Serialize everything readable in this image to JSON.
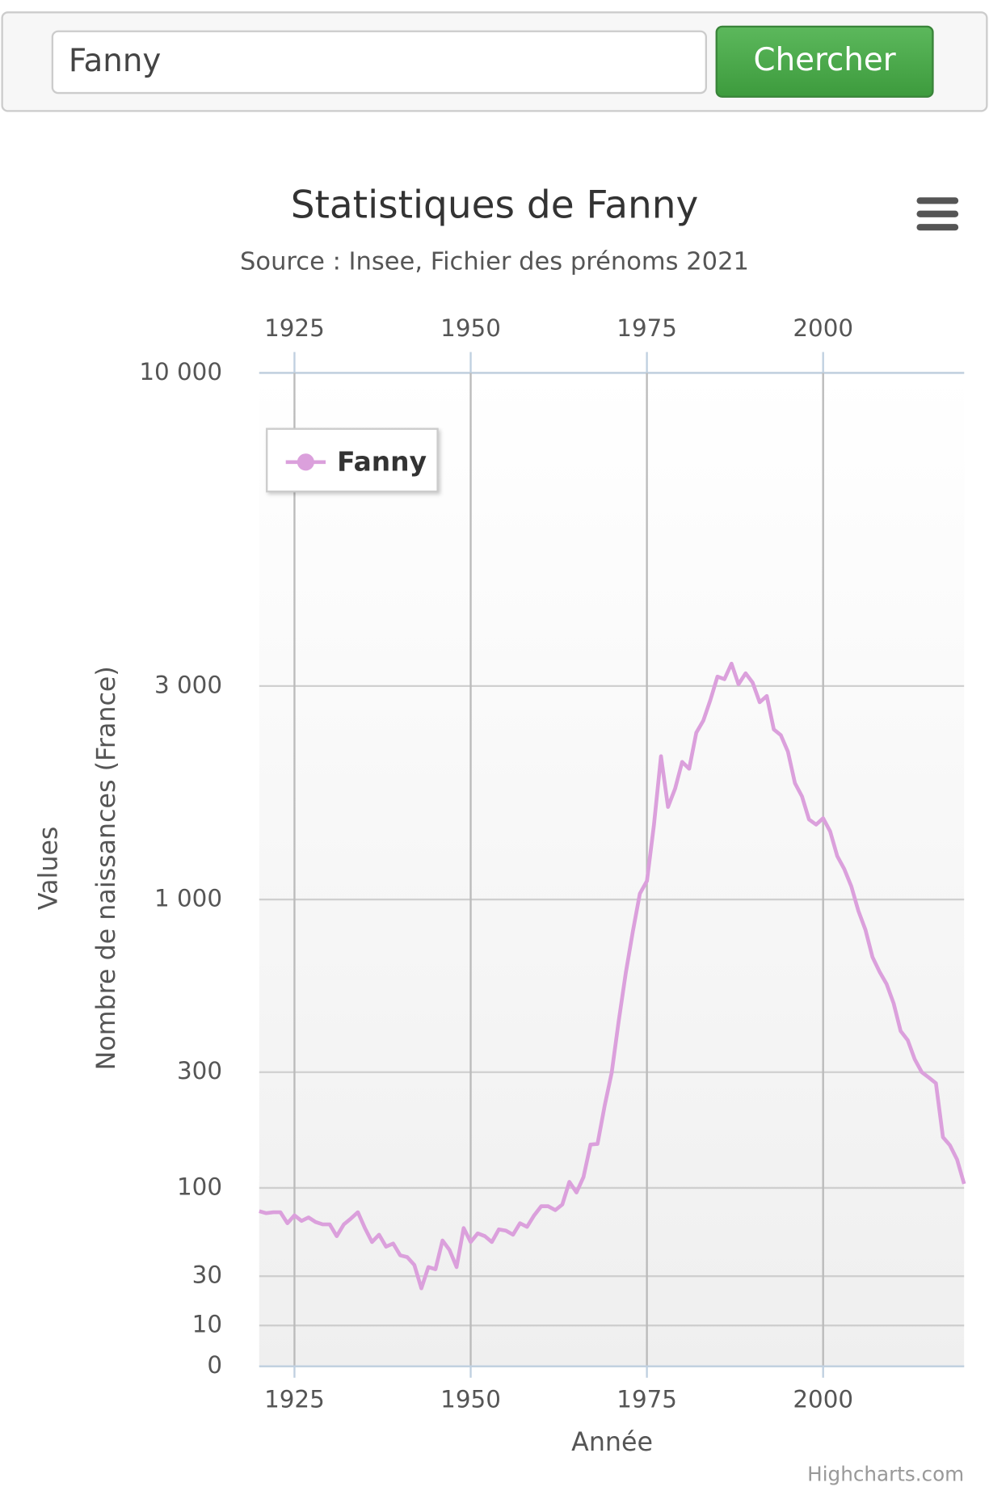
{
  "search": {
    "value": "Fanny",
    "button": "Chercher"
  },
  "chart_data": {
    "type": "line",
    "title": "Statistiques de Fanny",
    "subtitle": "Source : Insee, Fichier des prénoms 2021",
    "ylabels": [
      "Values",
      "Nombre de naissances (France)"
    ],
    "xlabel": "Année",
    "credits": "Highcharts.com",
    "x": [
      1920,
      1921,
      1922,
      1923,
      1924,
      1925,
      1926,
      1927,
      1928,
      1929,
      1930,
      1931,
      1932,
      1933,
      1934,
      1935,
      1936,
      1937,
      1938,
      1939,
      1940,
      1941,
      1942,
      1943,
      1944,
      1945,
      1946,
      1947,
      1948,
      1949,
      1950,
      1951,
      1952,
      1953,
      1954,
      1955,
      1956,
      1957,
      1958,
      1959,
      1960,
      1961,
      1962,
      1963,
      1964,
      1965,
      1966,
      1967,
      1968,
      1969,
      1970,
      1971,
      1972,
      1973,
      1974,
      1975,
      1976,
      1977,
      1978,
      1979,
      1980,
      1981,
      1982,
      1983,
      1984,
      1985,
      1986,
      1987,
      1988,
      1989,
      1990,
      1991,
      1992,
      1993,
      1994,
      1995,
      1996,
      1997,
      1998,
      1999,
      2000,
      2001,
      2002,
      2003,
      2004,
      2005,
      2006,
      2007,
      2008,
      2009,
      2010,
      2011,
      2012,
      2013,
      2014,
      2015,
      2016,
      2017,
      2018,
      2019,
      2020
    ],
    "series": [
      {
        "name": "Fanny",
        "color": "#dba0dc",
        "values": [
          73,
          71,
          72,
          72,
          62,
          69,
          64,
          67,
          63,
          61,
          61,
          52,
          61,
          66,
          72,
          58,
          48,
          53,
          45,
          47,
          40,
          39,
          35,
          23,
          34,
          33,
          49,
          43,
          34,
          58,
          48,
          54,
          52,
          48,
          57,
          56,
          53,
          62,
          59,
          69,
          78,
          78,
          74,
          80,
          106,
          94,
          111,
          151,
          152,
          218,
          298,
          428,
          600,
          800,
          1030,
          1100,
          1470,
          2090,
          1610,
          1770,
          2030,
          1960,
          2360,
          2510,
          2790,
          3110,
          3080,
          3270,
          3020,
          3150,
          3040,
          2760,
          2850,
          2400,
          2330,
          2140,
          1820,
          1700,
          1510,
          1470,
          1520,
          1420,
          1250,
          1170,
          1070,
          925,
          810,
          670,
          605,
          555,
          485,
          400,
          375,
          328,
          300,
          285,
          270,
          162,
          150,
          131,
          104
        ]
      }
    ],
    "xlim": [
      1920,
      2020
    ],
    "xticks": [
      1925,
      1950,
      1975,
      2000
    ],
    "ylim": [
      0,
      10000
    ],
    "yticks": [
      0,
      10,
      30,
      100,
      300,
      {
        "value": 1000,
        "label": "1 000"
      },
      {
        "value": 3000,
        "label": "3 000"
      },
      {
        "value": 10000,
        "label": "10 000"
      }
    ],
    "grid": true,
    "legend": "top-left"
  }
}
